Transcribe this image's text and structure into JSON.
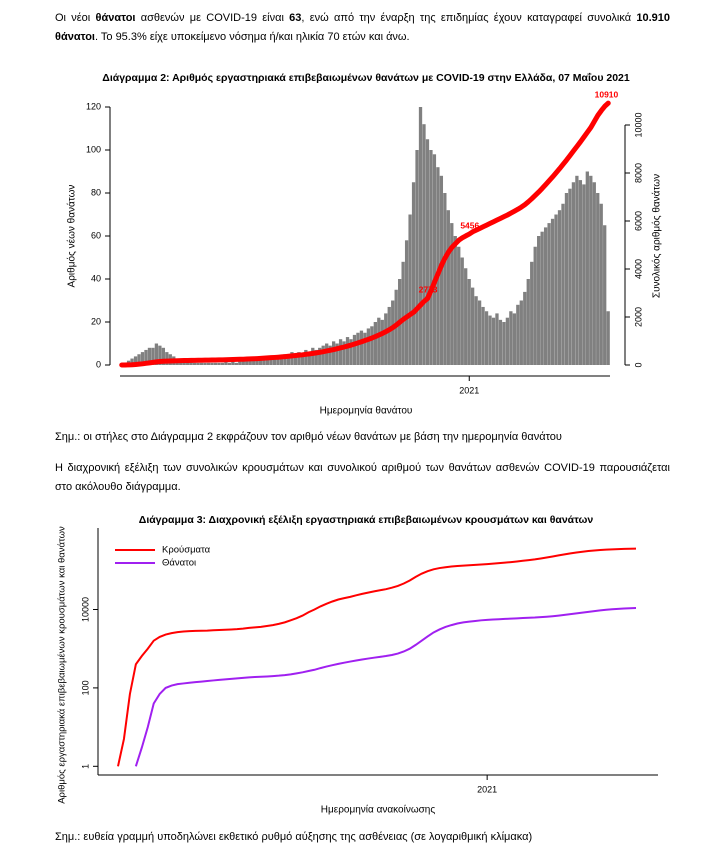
{
  "text": {
    "intro": [
      "Οι νέοι ",
      "θάνατοι",
      " ασθενών με COVID-19 είναι ",
      "63",
      ", ενώ από την έναρξη της επιδημίας έχουν καταγραφεί συνολικά ",
      "10.910 θάνατοι",
      ".  Το 95.3% είχε υποκείμενο νόσημα ή/και ηλικία 70 ετών και άνω."
    ],
    "note_2": "Σημ.: οι στήλες στο Διάγραμμα 2 εκφράζουν τον αριθμό νέων θανάτων με βάση την ημερομηνία θανάτου",
    "intro_3": "Η διαχρονική εξέλιξη των συνολικών κρουσμάτων και συνολικού αριθμού των θανάτων ασθενών COVID-19 παρουσιάζεται στο ακόλουθο διάγραμμα.",
    "note_3": "Σημ.: ευθεία γραμμή υποδηλώνει εκθετικό ρυθμό αύξησης της ασθένειας (σε λογαριθμική κλίμακα)"
  },
  "chart_data": [
    {
      "type": "bar",
      "title": "Διάγραμμα 2: Αριθμός εργαστηριακά επιβεβαιωμένων θανάτων με COVID-19 στην Ελλάδα, 07 Μαΐου 2021",
      "xlabel": "Ημερομηνία θανάτου",
      "ylabel": "Αριθμός νέων θανάτων",
      "y2label": "Συνολικός αριθμός θανάτων",
      "ylim": [
        0,
        120
      ],
      "yticks": [
        0,
        20,
        40,
        60,
        80,
        100,
        120
      ],
      "y2lim": [
        0,
        10750
      ],
      "y2ticks": [
        0,
        2000,
        4000,
        6000,
        8000,
        10000
      ],
      "categories": [
        null,
        null,
        null,
        null,
        null,
        null,
        null,
        null,
        null,
        null,
        null,
        null,
        null,
        null,
        null,
        null,
        null,
        null,
        null,
        null,
        null,
        null,
        null,
        null,
        null,
        null,
        null,
        null,
        null,
        null,
        null,
        null,
        null,
        null,
        null,
        null,
        null,
        null,
        null,
        null,
        null,
        null,
        null,
        null,
        null,
        null,
        null,
        null,
        null,
        null,
        null,
        null,
        null,
        null,
        null,
        null,
        null,
        null,
        null,
        null,
        null,
        null,
        null,
        null,
        null,
        null,
        null,
        null,
        null,
        null,
        null,
        null,
        null,
        null,
        null,
        null,
        null,
        null,
        null,
        null,
        null,
        null,
        null,
        null,
        null,
        null,
        null,
        null,
        null,
        null,
        null,
        null,
        null,
        null,
        null,
        null,
        null,
        null,
        null,
        null,
        "2021",
        null,
        null,
        null,
        null,
        null,
        null,
        null,
        null,
        null,
        null,
        null,
        null,
        null,
        null,
        null,
        null,
        null,
        null,
        null,
        null,
        null,
        null,
        null,
        null,
        null,
        null,
        null,
        null,
        null,
        null,
        null,
        null,
        null,
        null,
        null,
        null,
        null,
        null,
        null,
        null
      ],
      "series": [
        {
          "type": "bar",
          "color": "#808080",
          "values": [
            0,
            1,
            2,
            3,
            4,
            5,
            6,
            7,
            8,
            8,
            10,
            9,
            8,
            6,
            5,
            4,
            3,
            3,
            2,
            2,
            2,
            1,
            1,
            1,
            1,
            1,
            1,
            1,
            1,
            1,
            2,
            1,
            2,
            1,
            2,
            2,
            2,
            3,
            2,
            3,
            3,
            3,
            4,
            3,
            4,
            3,
            4,
            5,
            5,
            6,
            5,
            6,
            5,
            7,
            6,
            8,
            7,
            8,
            9,
            10,
            9,
            11,
            10,
            12,
            11,
            13,
            12,
            14,
            15,
            16,
            15,
            17,
            18,
            20,
            22,
            21,
            24,
            27,
            30,
            35,
            40,
            48,
            58,
            70,
            85,
            100,
            120,
            112,
            105,
            100,
            98,
            92,
            88,
            80,
            72,
            66,
            60,
            55,
            50,
            45,
            40,
            36,
            32,
            30,
            27,
            25,
            23,
            22,
            24,
            21,
            20,
            22,
            25,
            24,
            28,
            30,
            34,
            40,
            48,
            55,
            60,
            62,
            64,
            66,
            68,
            70,
            72,
            75,
            80,
            82,
            85,
            88,
            86,
            84,
            90,
            88,
            85,
            80,
            75,
            65,
            25
          ]
        },
        {
          "type": "line",
          "axis": "y2",
          "color": "#ff0000",
          "values": [
            0,
            2,
            5,
            10,
            20,
            35,
            50,
            70,
            90,
            110,
            130,
            145,
            155,
            160,
            165,
            170,
            175,
            180,
            185,
            190,
            192,
            195,
            197,
            200,
            202,
            205,
            208,
            210,
            212,
            215,
            220,
            225,
            230,
            233,
            238,
            242,
            248,
            255,
            260,
            268,
            275,
            285,
            295,
            305,
            315,
            325,
            338,
            350,
            365,
            380,
            395,
            410,
            425,
            445,
            465,
            485,
            505,
            530,
            555,
            585,
            615,
            645,
            680,
            715,
            750,
            790,
            830,
            875,
            920,
            970,
            1020,
            1070,
            1125,
            1185,
            1250,
            1315,
            1390,
            1470,
            1560,
            1665,
            1785,
            1900,
            2000,
            2100,
            2200,
            2350,
            2500,
            2650,
            2773,
            3100,
            3450,
            3800,
            4150,
            4450,
            4700,
            4900,
            5050,
            5200,
            5300,
            5380,
            5456,
            5550,
            5620,
            5690,
            5760,
            5830,
            5900,
            5970,
            6040,
            6110,
            6180,
            6250,
            6330,
            6410,
            6490,
            6580,
            6680,
            6800,
            6930,
            7070,
            7210,
            7360,
            7520,
            7680,
            7840,
            8010,
            8180,
            8360,
            8540,
            8730,
            8920,
            9110,
            9300,
            9500,
            9700,
            9900,
            10150,
            10400,
            10600,
            10780,
            10910
          ],
          "value_labels": [
            null,
            null,
            null,
            null,
            null,
            null,
            null,
            null,
            null,
            null,
            null,
            null,
            null,
            null,
            null,
            null,
            null,
            null,
            null,
            null,
            null,
            null,
            null,
            null,
            null,
            null,
            null,
            null,
            null,
            null,
            null,
            null,
            null,
            null,
            null,
            null,
            null,
            null,
            null,
            null,
            null,
            null,
            null,
            null,
            null,
            null,
            null,
            null,
            null,
            null,
            null,
            null,
            null,
            null,
            null,
            null,
            null,
            null,
            null,
            null,
            null,
            null,
            null,
            null,
            null,
            null,
            null,
            null,
            null,
            null,
            null,
            null,
            null,
            null,
            null,
            null,
            null,
            null,
            null,
            null,
            null,
            null,
            null,
            null,
            null,
            null,
            null,
            null,
            "2773",
            null,
            null,
            null,
            null,
            null,
            null,
            null,
            null,
            null,
            null,
            null,
            "5456",
            null,
            null,
            null,
            null,
            null,
            null,
            null,
            null,
            null,
            null,
            null,
            null,
            null,
            null,
            null,
            null,
            null,
            null,
            null,
            null,
            null,
            null,
            null,
            null,
            null,
            null,
            null,
            null,
            null,
            null,
            null,
            null,
            null,
            null,
            null,
            null,
            null,
            null,
            null,
            "10910"
          ]
        }
      ]
    },
    {
      "type": "line",
      "title": "Διάγραμμα 3: Διαχρονική εξέλιξη εργαστηριακά επιβεβαιωμένων κρουσμάτων και θανάτων",
      "xlabel": "Ημερομηνία ανακοίνωσης",
      "ylabel": "Αριθμός εργαστηριακά επιβεβαιωμένων κρουσμάτων και θανάτων",
      "log_y": true,
      "ylim": [
        0.6,
        1200000
      ],
      "yticks": [
        1,
        100,
        10000
      ],
      "legend": "top-left",
      "categories": [
        null,
        null,
        null,
        null,
        null,
        null,
        null,
        null,
        null,
        null,
        null,
        null,
        null,
        null,
        null,
        null,
        null,
        null,
        null,
        null,
        null,
        null,
        null,
        null,
        null,
        null,
        null,
        null,
        null,
        null,
        null,
        null,
        null,
        null,
        null,
        null,
        null,
        null,
        null,
        null,
        null,
        null,
        null,
        null,
        null,
        null,
        null,
        null,
        null,
        null,
        null,
        null,
        null,
        null,
        null,
        null,
        null,
        null,
        null,
        null,
        null,
        null,
        "2021",
        null,
        null,
        null,
        null,
        null,
        null,
        null,
        null,
        null,
        null,
        null,
        null,
        null,
        null,
        null,
        null,
        null,
        null,
        null,
        null,
        null,
        null,
        null,
        null,
        null
      ],
      "series": [
        {
          "name": "Κρούσματα",
          "color": "#ff0000",
          "values": [
            1,
            5,
            70,
            400,
            650,
            1000,
            1600,
            2000,
            2300,
            2500,
            2650,
            2750,
            2800,
            2850,
            2880,
            2900,
            2950,
            3000,
            3050,
            3100,
            3150,
            3250,
            3400,
            3500,
            3600,
            3800,
            4000,
            4300,
            4700,
            5300,
            6000,
            7000,
            8500,
            10000,
            12000,
            14000,
            16000,
            18000,
            19500,
            21000,
            23000,
            25000,
            27000,
            29000,
            31000,
            33000,
            36000,
            40000,
            46000,
            55000,
            68000,
            82000,
            95000,
            106000,
            114000,
            120000,
            125000,
            129000,
            132000,
            135000,
            138000,
            141000,
            144000,
            148000,
            152000,
            157000,
            162000,
            168000,
            175000,
            182000,
            190000,
            200000,
            212000,
            225000,
            240000,
            255000,
            270000,
            285000,
            298000,
            310000,
            320000,
            330000,
            337000,
            343000,
            348000,
            352000,
            355000,
            357000
          ]
        },
        {
          "name": "Θάνατοι",
          "color": "#a020f0",
          "values": [
            null,
            null,
            null,
            1,
            3,
            10,
            40,
            70,
            100,
            115,
            125,
            130,
            135,
            140,
            145,
            150,
            155,
            160,
            165,
            170,
            175,
            180,
            185,
            190,
            193,
            196,
            200,
            205,
            212,
            222,
            235,
            250,
            270,
            290,
            320,
            350,
            380,
            410,
            440,
            470,
            500,
            530,
            560,
            590,
            620,
            650,
            690,
            750,
            850,
            1000,
            1250,
            1600,
            2050,
            2600,
            3100,
            3600,
            4000,
            4400,
            4700,
            4900,
            5100,
            5300,
            5450,
            5550,
            5650,
            5750,
            5850,
            5950,
            6050,
            6150,
            6250,
            6400,
            6550,
            6750,
            7000,
            7300,
            7600,
            7950,
            8300,
            8700,
            9100,
            9500,
            9850,
            10150,
            10400,
            10600,
            10800,
            10910
          ]
        }
      ]
    }
  ]
}
